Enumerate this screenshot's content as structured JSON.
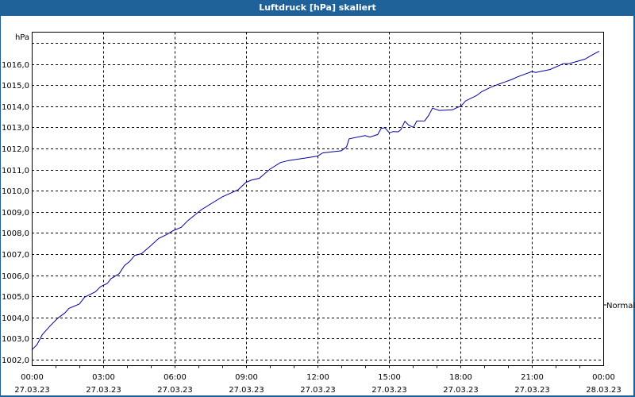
{
  "window": {
    "title": "Luftdruck [hPa] skaliert"
  },
  "axes": {
    "y_unit": "hPa",
    "y_ticks": [
      "1016,0",
      "1015,0",
      "1014,0",
      "1013,0",
      "1012,0",
      "1011,0",
      "1010,0",
      "1009,0",
      "1008,0",
      "1007,0",
      "1006,0",
      "1005,0",
      "1004,0",
      "1003,0",
      "1002,0"
    ],
    "x_ticks": [
      {
        "time": "00:00",
        "date": "27.03.23"
      },
      {
        "time": "03:00",
        "date": "27.03.23"
      },
      {
        "time": "06:00",
        "date": "27.03.23"
      },
      {
        "time": "09:00",
        "date": "27.03.23"
      },
      {
        "time": "12:00",
        "date": "27.03.23"
      },
      {
        "time": "15:00",
        "date": "27.03.23"
      },
      {
        "time": "18:00",
        "date": "27.03.23"
      },
      {
        "time": "21:00",
        "date": "27.03.23"
      },
      {
        "time": "00:00",
        "date": "28.03.23"
      }
    ],
    "right_marker": "Normal"
  },
  "colors": {
    "titlebar": "#1f6199",
    "series": "#0000a0",
    "grid": "#000000"
  },
  "chart_data": {
    "type": "line",
    "title": "Luftdruck [hPa] skaliert",
    "xlabel": "",
    "ylabel": "hPa",
    "ylim": [
      1001.7,
      1017.5
    ],
    "xlim_hours": [
      0,
      24
    ],
    "grid": true,
    "legend": "none",
    "annotations": [
      "Normal (right axis marker at ~1004,5)"
    ],
    "x_tick_labels": [
      "00:00 27.03.23",
      "03:00 27.03.23",
      "06:00 27.03.23",
      "09:00 27.03.23",
      "12:00 27.03.23",
      "15:00 27.03.23",
      "18:00 27.03.23",
      "21:00 27.03.23",
      "00:00 28.03.23"
    ],
    "series": [
      {
        "name": "Luftdruck",
        "x_hours": [
          0,
          0.22,
          0.44,
          0.78,
          1.11,
          1.39,
          1.56,
          2.0,
          2.22,
          2.67,
          2.89,
          3.17,
          3.33,
          3.67,
          3.89,
          4.11,
          4.33,
          4.61,
          5.0,
          5.33,
          5.67,
          5.94,
          6.28,
          6.56,
          7.11,
          7.67,
          8.0,
          8.67,
          9.0,
          9.22,
          9.56,
          10.0,
          10.44,
          10.78,
          11.33,
          12.0,
          12.22,
          13.0,
          13.22,
          13.33,
          14.0,
          14.2,
          14.53,
          14.67,
          14.83,
          15.02,
          15.17,
          15.39,
          15.5,
          15.67,
          15.83,
          16.03,
          16.17,
          16.5,
          16.67,
          16.83,
          17.11,
          17.67,
          17.89,
          18.02,
          18.22,
          18.67,
          18.9,
          19.27,
          19.6,
          20.17,
          20.4,
          21.0,
          21.17,
          21.77,
          22.33,
          22.57,
          23.23,
          23.57,
          23.83
        ],
        "values": [
          1002.46,
          1002.71,
          1003.18,
          1003.61,
          1003.98,
          1004.21,
          1004.43,
          1004.64,
          1004.96,
          1005.21,
          1005.46,
          1005.61,
          1005.84,
          1006.07,
          1006.45,
          1006.65,
          1006.94,
          1007.02,
          1007.4,
          1007.74,
          1007.93,
          1008.11,
          1008.27,
          1008.59,
          1009.09,
          1009.48,
          1009.71,
          1010.05,
          1010.4,
          1010.5,
          1010.59,
          1011.02,
          1011.33,
          1011.43,
          1011.52,
          1011.64,
          1011.79,
          1011.89,
          1012.08,
          1012.46,
          1012.61,
          1012.54,
          1012.66,
          1012.95,
          1012.98,
          1012.74,
          1012.8,
          1012.79,
          1012.89,
          1013.29,
          1013.1,
          1013.0,
          1013.3,
          1013.31,
          1013.57,
          1013.91,
          1013.8,
          1013.83,
          1013.95,
          1014.0,
          1014.25,
          1014.5,
          1014.69,
          1014.9,
          1015.04,
          1015.27,
          1015.39,
          1015.64,
          1015.6,
          1015.74,
          1016.02,
          1016.02,
          1016.23,
          1016.45,
          1016.6
        ]
      }
    ]
  }
}
